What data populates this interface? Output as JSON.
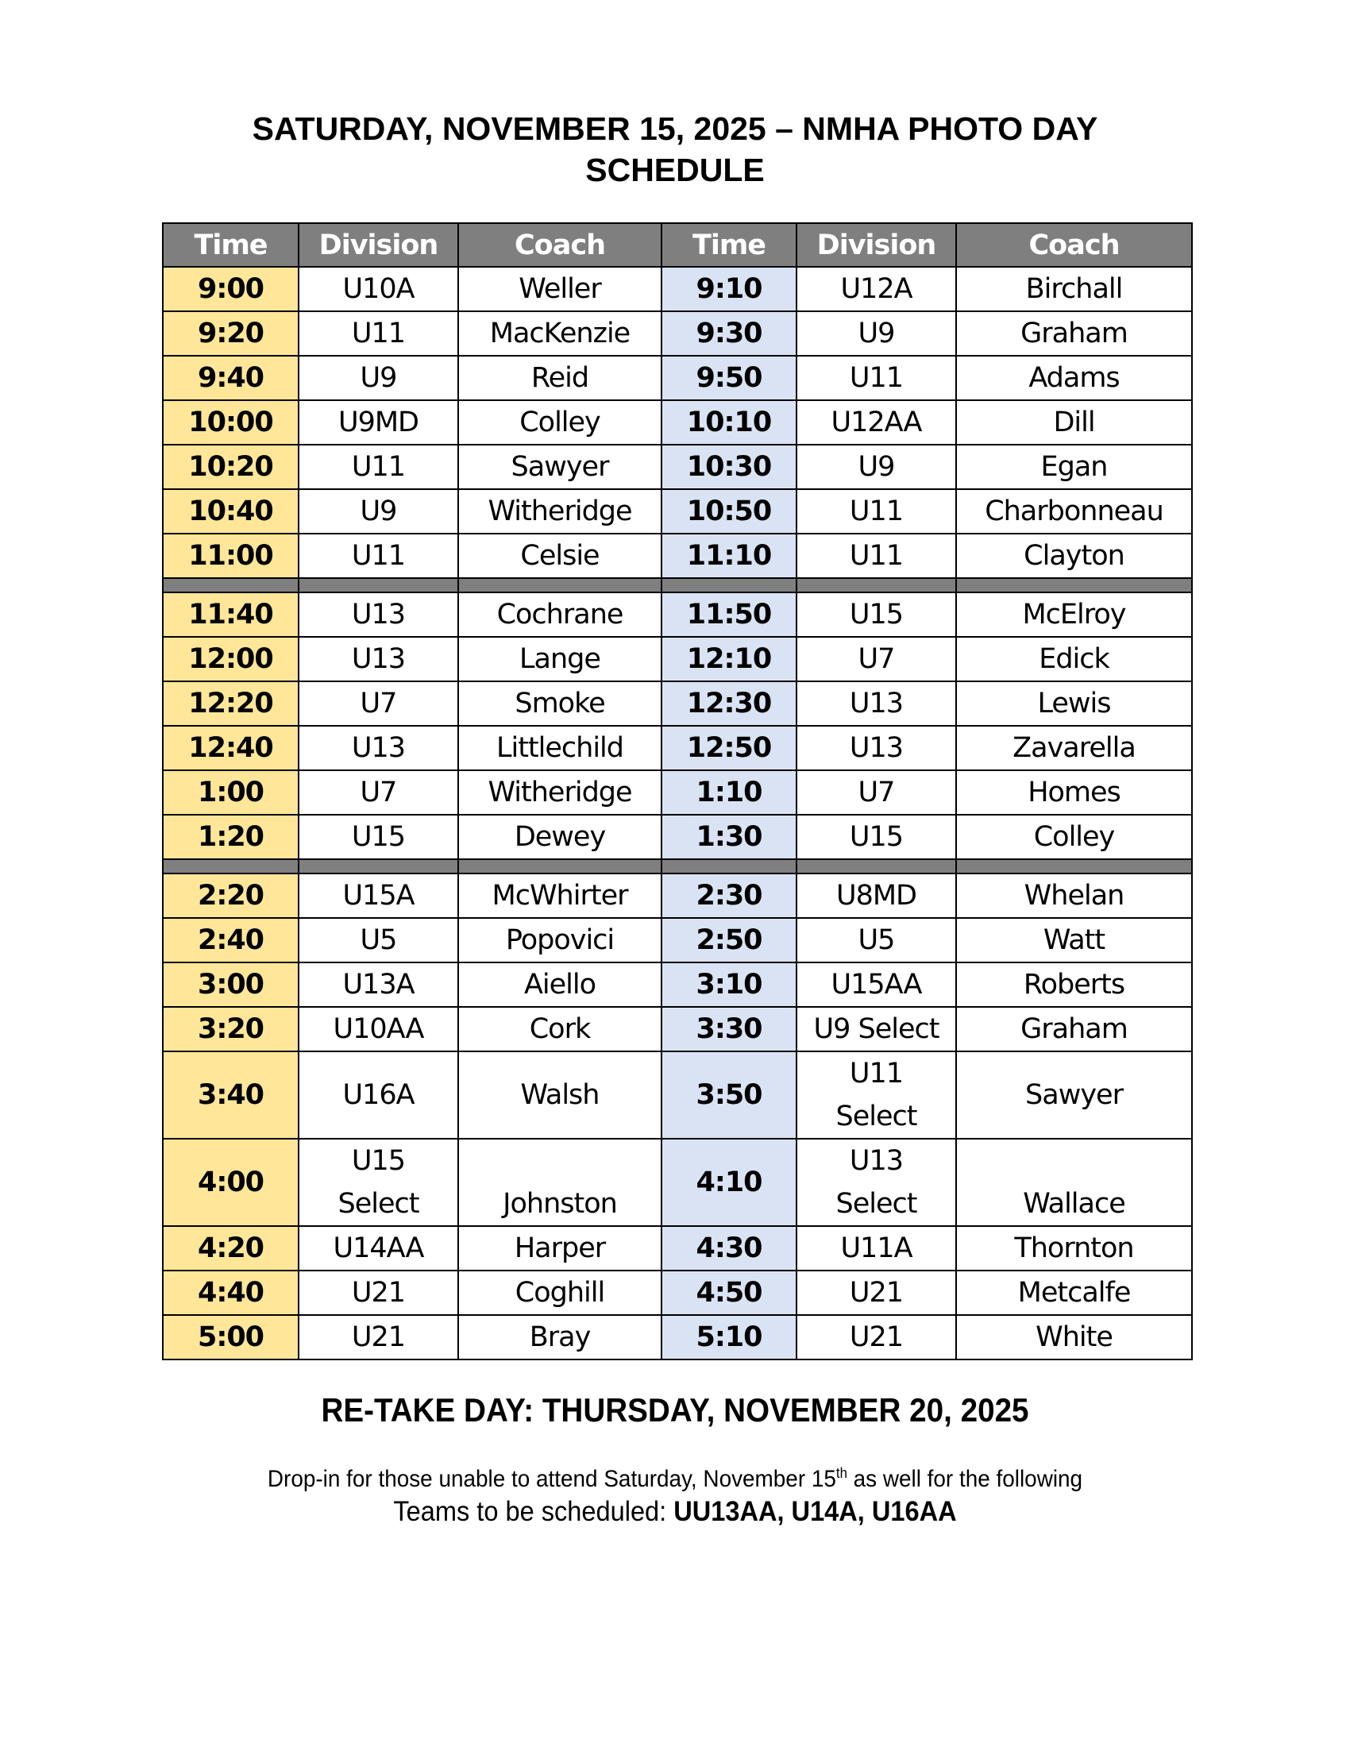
{
  "title": {
    "line1": "SATURDAY, NOVEMBER 15, 2025 – NMHA PHOTO DAY",
    "line2": "SCHEDULE"
  },
  "colors": {
    "header": "#7f7f7f",
    "time_left": "#ffe699",
    "time_right": "#dae3f3"
  },
  "table": {
    "headers": [
      "Time",
      "Division",
      "Coach",
      "Time",
      "Division",
      "Coach"
    ],
    "rows": [
      [
        "9:00",
        "U10A",
        "Weller",
        "9:10",
        "U12A",
        "Birchall"
      ],
      [
        "9:20",
        "U11",
        "MacKenzie",
        "9:30",
        "U9",
        "Graham"
      ],
      [
        "9:40",
        "U9",
        "Reid",
        "9:50",
        "U11",
        "Adams"
      ],
      [
        "10:00",
        "U9MD",
        "Colley",
        "10:10",
        "U12AA",
        "Dill"
      ],
      [
        "10:20",
        "U11",
        "Sawyer",
        "10:30",
        "U9",
        "Egan"
      ],
      [
        "10:40",
        "U9",
        "Witheridge",
        "10:50",
        "U11",
        "Charbonneau"
      ],
      [
        "11:00",
        "U11",
        "Celsie",
        "11:10",
        "U11",
        "Clayton"
      ],
      "break",
      [
        "11:40",
        "U13",
        "Cochrane",
        "11:50",
        "U15",
        "McElroy"
      ],
      [
        "12:00",
        "U13",
        "Lange",
        "12:10",
        "U7",
        "Edick"
      ],
      [
        "12:20",
        "U7",
        "Smoke",
        "12:30",
        "U13",
        "Lewis"
      ],
      [
        "12:40",
        "U13",
        "Littlechild",
        "12:50",
        "U13",
        "Zavarella"
      ],
      [
        "1:00",
        "U7",
        "Witheridge",
        "1:10",
        "U7",
        "Homes"
      ],
      [
        "1:20",
        "U15",
        "Dewey",
        "1:30",
        "U15",
        "Colley"
      ],
      "break",
      [
        "2:20",
        "U15A",
        "McWhirter",
        "2:30",
        "U8MD",
        "Whelan"
      ],
      [
        "2:40",
        "U5",
        "Popovici",
        "2:50",
        "U5",
        "Watt"
      ],
      [
        "3:00",
        "U13A",
        "Aiello",
        "3:10",
        "U15AA",
        "Roberts"
      ],
      [
        "3:20",
        "U10AA",
        "Cork",
        "3:30",
        "U9 Select",
        "Graham"
      ],
      [
        "3:40",
        "U16A",
        "Walsh",
        "3:50",
        "U11 Select",
        "Sawyer"
      ],
      [
        "4:00",
        "U15 Select",
        "Johnston",
        "4:10",
        "U13 Select",
        "Wallace"
      ],
      [
        "4:20",
        "U14AA",
        "Harper",
        "4:30",
        "U11A",
        "Thornton"
      ],
      [
        "4:40",
        "U21",
        "Coghill",
        "4:50",
        "U21",
        "Metcalfe"
      ],
      [
        "5:00",
        "U21",
        "Bray",
        "5:10",
        "U21",
        "White"
      ]
    ]
  },
  "footer": {
    "retake": "RE-TAKE DAY: THURSDAY, NOVEMBER 20, 2025",
    "dropin_before": "Drop-in for those unable to attend Saturday, November 15",
    "dropin_sup": "th",
    "dropin_after": " as well for the following",
    "teams_label": "Teams to be scheduled: ",
    "teams_list": "UU13AA, U14A, U16AA"
  }
}
